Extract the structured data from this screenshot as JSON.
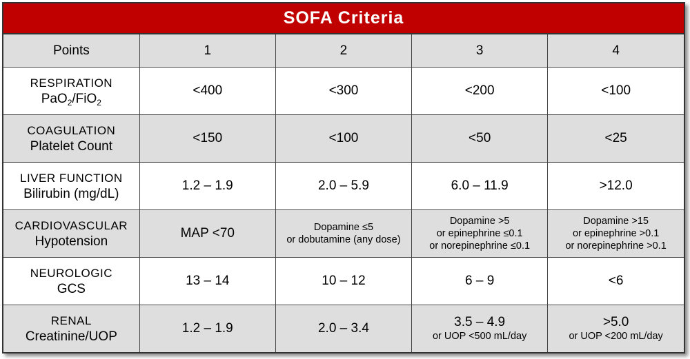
{
  "title": "SOFA Criteria",
  "header": {
    "label": "Points",
    "points": [
      "1",
      "2",
      "3",
      "4"
    ]
  },
  "rows": [
    {
      "category": "Respiration",
      "measure_parts": [
        "PaO",
        "2",
        "/FiO",
        "2"
      ],
      "values": [
        [
          "<400"
        ],
        [
          "<300"
        ],
        [
          "<200"
        ],
        [
          "<100"
        ]
      ]
    },
    {
      "category": "Coagulation",
      "measure": "Platelet Count",
      "values": [
        [
          "<150"
        ],
        [
          "<100"
        ],
        [
          "<50"
        ],
        [
          "<25"
        ]
      ]
    },
    {
      "category": "Liver Function",
      "measure": "Bilirubin (mg/dL)",
      "values": [
        [
          "1.2 – 1.9"
        ],
        [
          "2.0 – 5.9"
        ],
        [
          "6.0 – 11.9"
        ],
        [
          ">12.0"
        ]
      ]
    },
    {
      "category": "Cardiovascular",
      "measure": "Hypotension",
      "values": [
        [
          "MAP <70"
        ],
        [
          "Dopamine ≤5",
          "or dobutamine (any dose)"
        ],
        [
          "Dopamine >5",
          "or epinephrine ≤0.1",
          "or norepinephrine ≤0.1"
        ],
        [
          "Dopamine >15",
          "or epinephrine >0.1",
          "or norepinephrine >0.1"
        ]
      ]
    },
    {
      "category": "Neurologic",
      "measure": "GCS",
      "values": [
        [
          "13 – 14"
        ],
        [
          "10 – 12"
        ],
        [
          "6 – 9"
        ],
        [
          "<6"
        ]
      ]
    },
    {
      "category": "Renal",
      "measure": "Creatinine/UOP",
      "values": [
        [
          "1.2 – 1.9"
        ],
        [
          "2.0 – 3.4"
        ],
        [
          "3.5 – 4.9",
          "or UOP <500 mL/day"
        ],
        [
          ">5.0",
          "or UOP <200 mL/day"
        ]
      ]
    }
  ]
}
